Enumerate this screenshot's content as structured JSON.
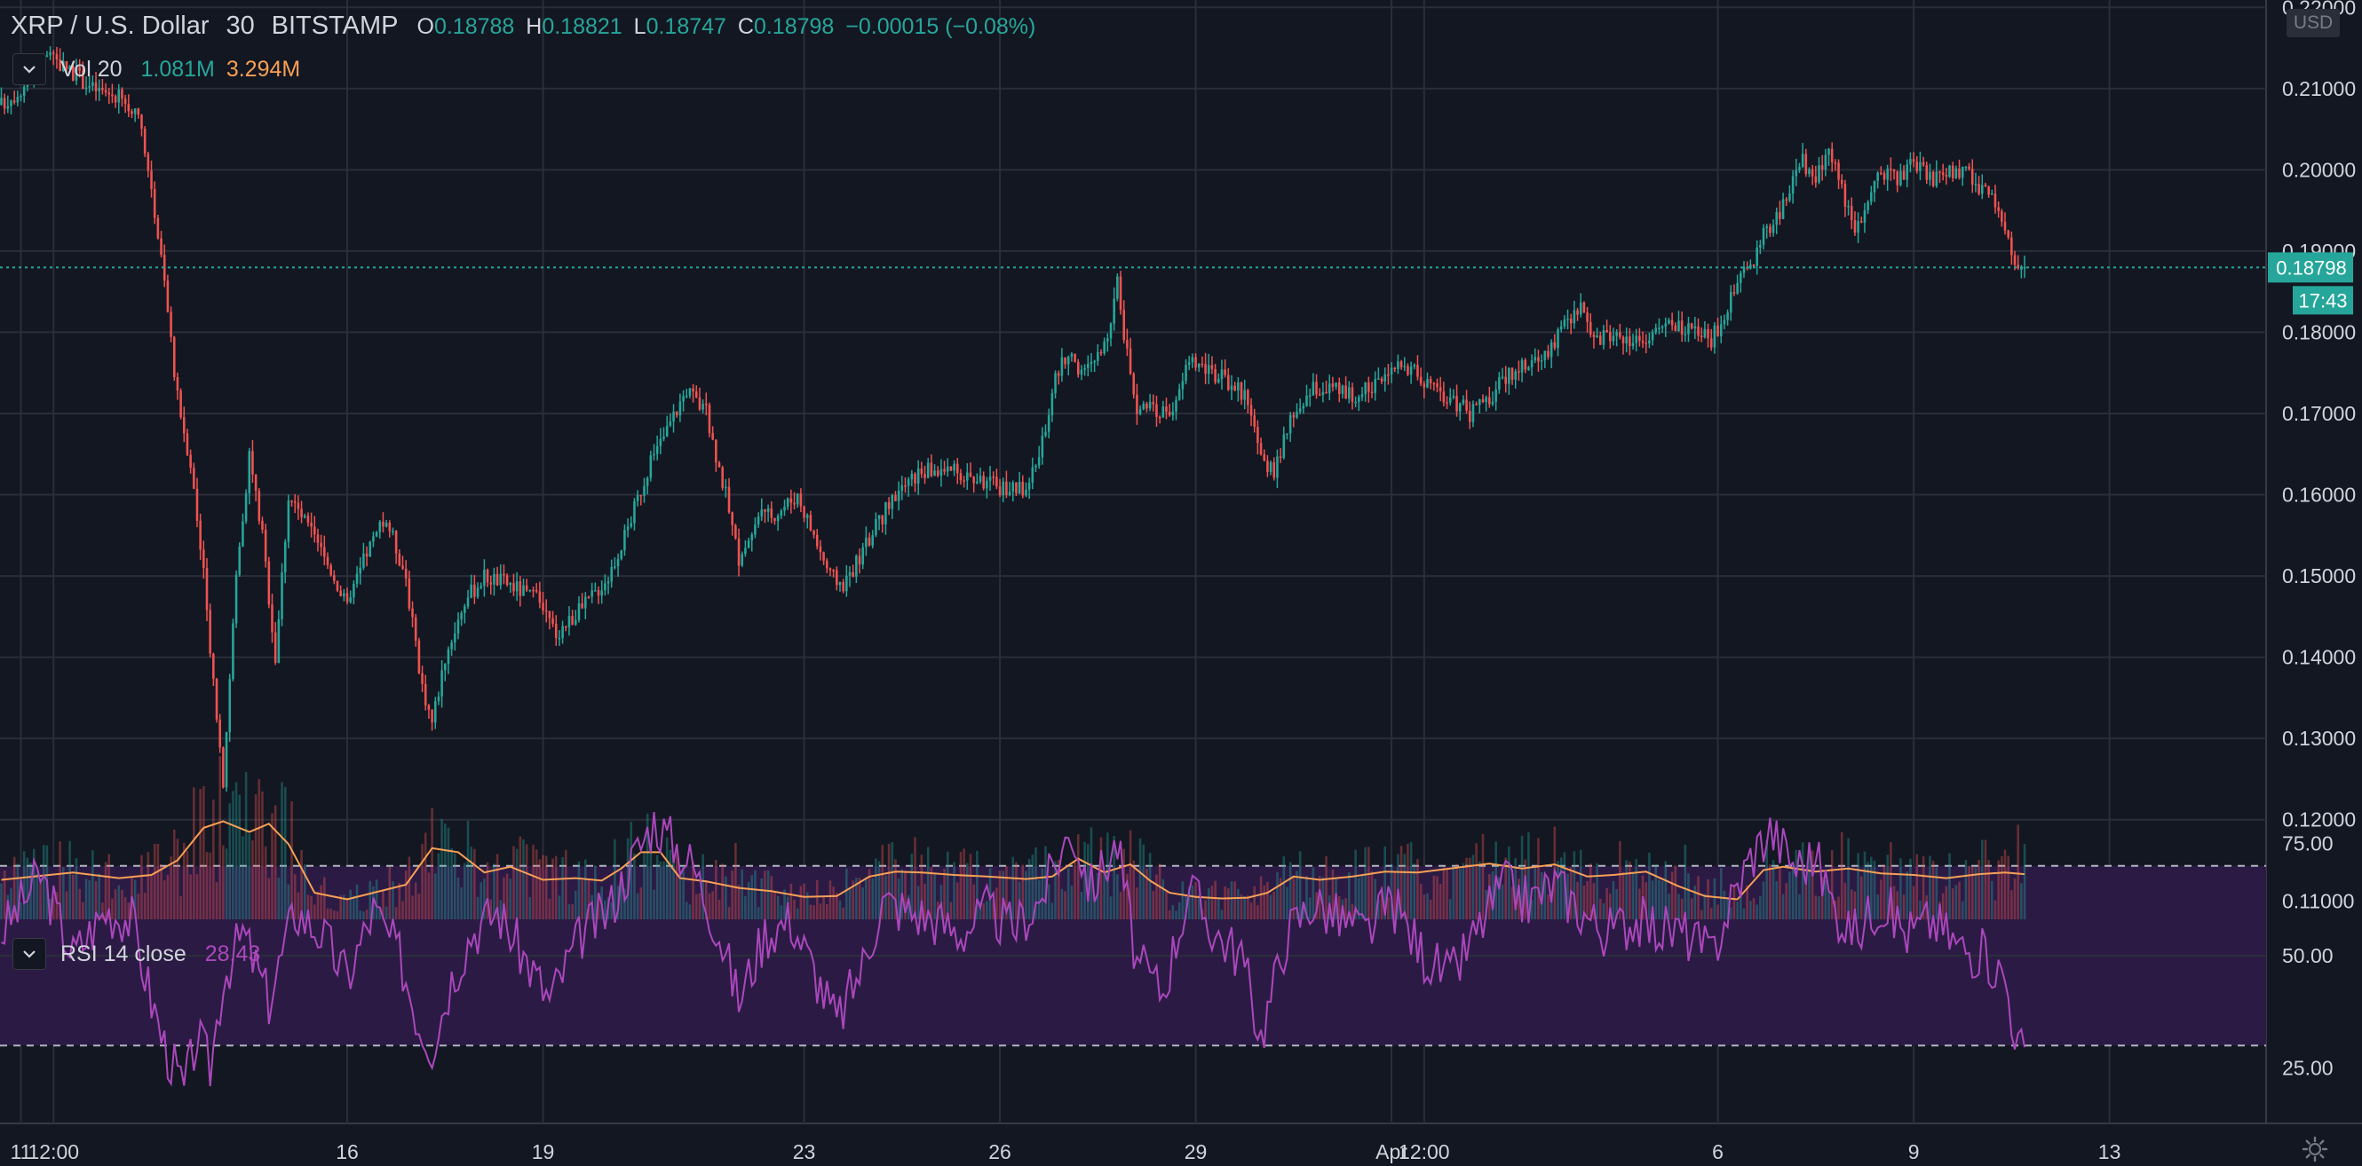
{
  "header": {
    "symbol": "XRP / U.S. Dollar",
    "interval": "30",
    "exchange": "BITSTAMP",
    "o_label": "O",
    "o_value": "0.18788",
    "h_label": "H",
    "h_value": "0.18821",
    "l_label": "L",
    "l_value": "0.18747",
    "c_label": "C",
    "c_value": "0.18798",
    "change": "−0.00015 (−0.08%)"
  },
  "volume_legend": {
    "label": "Vol 20",
    "value1": "1.081M",
    "value2": "3.294M"
  },
  "rsi_legend": {
    "label": "RSI 14 close",
    "value": "28.43"
  },
  "currency_badge": "USD",
  "price_badge": {
    "price": "0.18798",
    "countdown": "17:43"
  },
  "colors": {
    "background": "#131722",
    "grid": "#2a2e39",
    "up": "#26a69a",
    "down": "#ef5350",
    "volume_ma": "#f7a055",
    "rsi_line": "#ab47bc",
    "rsi_band": "#2b1b44",
    "axis_text": "#d1d4dc"
  },
  "icons": {
    "collapse": "chevron-down-icon",
    "settings": "gear-icon"
  },
  "chart_data": [
    {
      "type": "candlestick",
      "price_axis": {
        "ticks": [
          "0.11000",
          "0.12000",
          "0.13000",
          "0.14000",
          "0.15000",
          "0.16000",
          "0.17000",
          "0.18000",
          "0.19000",
          "0.20000",
          "0.21000",
          "0.22000"
        ],
        "ylim": [
          0.1073,
          0.2209
        ]
      },
      "x_axis": {
        "labels": [
          "11",
          "12:00",
          "16",
          "19",
          "23",
          "26",
          "29",
          "Apr",
          "12:00",
          "6",
          "9",
          "13"
        ],
        "label_days": [
          0.0,
          0.5,
          5.0,
          8.0,
          12.0,
          15.0,
          18.0,
          21.0,
          21.5,
          26.0,
          29.0,
          32.0
        ],
        "xlim": [
          -0.32,
          34.4
        ]
      },
      "current_price": 0.18798,
      "series_points": [
        [
          -0.3,
          0.208
        ],
        [
          0.0,
          0.21
        ],
        [
          0.4,
          0.214
        ],
        [
          0.8,
          0.212
        ],
        [
          1.1,
          0.21
        ],
        [
          1.5,
          0.209
        ],
        [
          1.8,
          0.206
        ],
        [
          2.0,
          0.198
        ],
        [
          2.2,
          0.186
        ],
        [
          2.4,
          0.172
        ],
        [
          2.6,
          0.164
        ],
        [
          2.8,
          0.15
        ],
        [
          3.0,
          0.133
        ],
        [
          3.1,
          0.125
        ],
        [
          3.3,
          0.15
        ],
        [
          3.5,
          0.165
        ],
        [
          3.7,
          0.155
        ],
        [
          3.9,
          0.14
        ],
        [
          4.1,
          0.16
        ],
        [
          4.4,
          0.156
        ],
        [
          4.8,
          0.15
        ],
        [
          5.0,
          0.146
        ],
        [
          5.3,
          0.153
        ],
        [
          5.6,
          0.157
        ],
        [
          5.9,
          0.15
        ],
        [
          6.1,
          0.138
        ],
        [
          6.3,
          0.132
        ],
        [
          6.5,
          0.14
        ],
        [
          6.8,
          0.147
        ],
        [
          7.1,
          0.15
        ],
        [
          7.5,
          0.149
        ],
        [
          7.9,
          0.147
        ],
        [
          8.2,
          0.143
        ],
        [
          8.6,
          0.146
        ],
        [
          9.0,
          0.15
        ],
        [
          9.3,
          0.156
        ],
        [
          9.6,
          0.163
        ],
        [
          9.9,
          0.168
        ],
        [
          10.2,
          0.173
        ],
        [
          10.5,
          0.17
        ],
        [
          10.8,
          0.16
        ],
        [
          11.0,
          0.152
        ],
        [
          11.3,
          0.157
        ],
        [
          11.6,
          0.158
        ],
        [
          11.9,
          0.16
        ],
        [
          12.2,
          0.154
        ],
        [
          12.4,
          0.15
        ],
        [
          12.6,
          0.149
        ],
        [
          12.9,
          0.153
        ],
        [
          13.1,
          0.156
        ],
        [
          13.4,
          0.16
        ],
        [
          13.8,
          0.163
        ],
        [
          14.2,
          0.163
        ],
        [
          14.6,
          0.162
        ],
        [
          15.0,
          0.161
        ],
        [
          15.4,
          0.161
        ],
        [
          15.6,
          0.164
        ],
        [
          15.8,
          0.173
        ],
        [
          16.0,
          0.177
        ],
        [
          16.3,
          0.175
        ],
        [
          16.6,
          0.178
        ],
        [
          16.8,
          0.186
        ],
        [
          16.9,
          0.18
        ],
        [
          17.1,
          0.171
        ],
        [
          17.4,
          0.17
        ],
        [
          17.7,
          0.171
        ],
        [
          17.9,
          0.177
        ],
        [
          18.2,
          0.175
        ],
        [
          18.5,
          0.174
        ],
        [
          18.8,
          0.172
        ],
        [
          19.0,
          0.164
        ],
        [
          19.2,
          0.163
        ],
        [
          19.5,
          0.17
        ],
        [
          19.8,
          0.173
        ],
        [
          20.1,
          0.173
        ],
        [
          20.5,
          0.172
        ],
        [
          20.9,
          0.175
        ],
        [
          21.3,
          0.176
        ],
        [
          21.6,
          0.173
        ],
        [
          21.9,
          0.172
        ],
        [
          22.2,
          0.17
        ],
        [
          22.5,
          0.172
        ],
        [
          22.8,
          0.175
        ],
        [
          23.1,
          0.176
        ],
        [
          23.4,
          0.178
        ],
        [
          23.7,
          0.181
        ],
        [
          23.9,
          0.183
        ],
        [
          24.1,
          0.179
        ],
        [
          24.4,
          0.18
        ],
        [
          24.7,
          0.179
        ],
        [
          25.0,
          0.18
        ],
        [
          25.3,
          0.181
        ],
        [
          25.6,
          0.18
        ],
        [
          25.9,
          0.179
        ],
        [
          26.1,
          0.182
        ],
        [
          26.3,
          0.186
        ],
        [
          26.5,
          0.188
        ],
        [
          26.7,
          0.192
        ],
        [
          26.9,
          0.194
        ],
        [
          27.1,
          0.198
        ],
        [
          27.3,
          0.201
        ],
        [
          27.5,
          0.199
        ],
        [
          27.7,
          0.203
        ],
        [
          27.9,
          0.198
        ],
        [
          28.1,
          0.192
        ],
        [
          28.3,
          0.196
        ],
        [
          28.5,
          0.2
        ],
        [
          28.8,
          0.199
        ],
        [
          29.0,
          0.201
        ],
        [
          29.3,
          0.199
        ],
        [
          29.6,
          0.2
        ],
        [
          29.9,
          0.199
        ],
        [
          30.2,
          0.196
        ],
        [
          30.4,
          0.192
        ],
        [
          30.6,
          0.188
        ],
        [
          30.7,
          0.18798
        ]
      ]
    },
    {
      "type": "bar",
      "name": "Vol 20",
      "moving_average_points": [
        [
          -0.3,
          0.1126
        ],
        [
          0.8,
          0.1135
        ],
        [
          1.5,
          0.1128
        ],
        [
          2.0,
          0.1132
        ],
        [
          2.4,
          0.115
        ],
        [
          2.8,
          0.119
        ],
        [
          3.1,
          0.1198
        ],
        [
          3.5,
          0.1185
        ],
        [
          3.8,
          0.1195
        ],
        [
          4.1,
          0.117
        ],
        [
          4.5,
          0.111
        ],
        [
          5.0,
          0.1102
        ],
        [
          5.4,
          0.111
        ],
        [
          5.9,
          0.112
        ],
        [
          6.3,
          0.1165
        ],
        [
          6.7,
          0.116
        ],
        [
          7.1,
          0.1135
        ],
        [
          7.5,
          0.1142
        ],
        [
          8.0,
          0.1126
        ],
        [
          8.5,
          0.1128
        ],
        [
          8.9,
          0.1125
        ],
        [
          9.2,
          0.114
        ],
        [
          9.5,
          0.116
        ],
        [
          9.8,
          0.116
        ],
        [
          10.1,
          0.1128
        ],
        [
          10.5,
          0.1124
        ],
        [
          11.0,
          0.1116
        ],
        [
          11.5,
          0.1112
        ],
        [
          12.0,
          0.1105
        ],
        [
          12.5,
          0.1106
        ],
        [
          13.0,
          0.113
        ],
        [
          13.4,
          0.1136
        ],
        [
          13.8,
          0.1135
        ],
        [
          14.3,
          0.1132
        ],
        [
          14.8,
          0.113
        ],
        [
          15.4,
          0.1127
        ],
        [
          15.8,
          0.113
        ],
        [
          16.2,
          0.1152
        ],
        [
          16.6,
          0.1135
        ],
        [
          17.0,
          0.1145
        ],
        [
          17.3,
          0.1125
        ],
        [
          17.6,
          0.111
        ],
        [
          18.0,
          0.1105
        ],
        [
          18.4,
          0.1103
        ],
        [
          18.8,
          0.1104
        ],
        [
          19.1,
          0.111
        ],
        [
          19.5,
          0.113
        ],
        [
          19.9,
          0.1126
        ],
        [
          20.4,
          0.113
        ],
        [
          20.9,
          0.1136
        ],
        [
          21.4,
          0.1135
        ],
        [
          21.9,
          0.114
        ],
        [
          22.5,
          0.1146
        ],
        [
          23.0,
          0.114
        ],
        [
          23.5,
          0.1145
        ],
        [
          24.0,
          0.113
        ],
        [
          24.4,
          0.1132
        ],
        [
          24.9,
          0.1136
        ],
        [
          25.4,
          0.1118
        ],
        [
          25.8,
          0.1106
        ],
        [
          26.3,
          0.1102
        ],
        [
          26.7,
          0.1138
        ],
        [
          27.0,
          0.1142
        ],
        [
          27.5,
          0.1136
        ],
        [
          28.0,
          0.114
        ],
        [
          28.5,
          0.1134
        ],
        [
          29.0,
          0.1132
        ],
        [
          29.5,
          0.1128
        ],
        [
          30.0,
          0.1133
        ],
        [
          30.4,
          0.1135
        ],
        [
          30.7,
          0.1133
        ]
      ]
    },
    {
      "type": "line",
      "name": "RSI 14 close",
      "ylim": [
        0,
        100
      ],
      "band": [
        30,
        70
      ],
      "axis_ticks": [
        "25.00",
        "50.00",
        "75.00"
      ],
      "points": [
        [
          -0.3,
          55
        ],
        [
          0.3,
          68
        ],
        [
          0.8,
          50
        ],
        [
          1.3,
          60
        ],
        [
          1.7,
          58
        ],
        [
          2.0,
          40
        ],
        [
          2.2,
          30
        ],
        [
          2.5,
          20
        ],
        [
          2.7,
          32
        ],
        [
          2.9,
          25
        ],
        [
          3.1,
          45
        ],
        [
          3.4,
          55
        ],
        [
          3.8,
          40
        ],
        [
          4.2,
          60
        ],
        [
          4.6,
          55
        ],
        [
          5.0,
          45
        ],
        [
          5.4,
          60
        ],
        [
          5.8,
          50
        ],
        [
          6.1,
          35
        ],
        [
          6.3,
          30
        ],
        [
          6.6,
          45
        ],
        [
          6.9,
          55
        ],
        [
          7.3,
          60
        ],
        [
          7.7,
          50
        ],
        [
          8.1,
          40
        ],
        [
          8.6,
          55
        ],
        [
          9.0,
          60
        ],
        [
          9.4,
          72
        ],
        [
          9.7,
          80
        ],
        [
          10.0,
          75
        ],
        [
          10.3,
          70
        ],
        [
          10.7,
          55
        ],
        [
          11.0,
          40
        ],
        [
          11.4,
          55
        ],
        [
          11.8,
          58
        ],
        [
          12.2,
          45
        ],
        [
          12.5,
          35
        ],
        [
          12.9,
          48
        ],
        [
          13.2,
          62
        ],
        [
          13.6,
          60
        ],
        [
          14.0,
          58
        ],
        [
          14.4,
          55
        ],
        [
          14.8,
          60
        ],
        [
          15.2,
          56
        ],
        [
          15.6,
          62
        ],
        [
          15.9,
          72
        ],
        [
          16.1,
          78
        ],
        [
          16.4,
          65
        ],
        [
          16.8,
          75
        ],
        [
          17.1,
          48
        ],
        [
          17.5,
          42
        ],
        [
          17.9,
          65
        ],
        [
          18.3,
          55
        ],
        [
          18.7,
          50
        ],
        [
          19.0,
          32
        ],
        [
          19.4,
          55
        ],
        [
          19.8,
          62
        ],
        [
          20.2,
          58
        ],
        [
          20.6,
          55
        ],
        [
          21.0,
          62
        ],
        [
          21.5,
          50
        ],
        [
          21.9,
          45
        ],
        [
          22.3,
          55
        ],
        [
          22.7,
          66
        ],
        [
          23.1,
          62
        ],
        [
          23.5,
          66
        ],
        [
          23.9,
          60
        ],
        [
          24.3,
          55
        ],
        [
          24.7,
          58
        ],
        [
          25.1,
          56
        ],
        [
          25.5,
          55
        ],
        [
          25.9,
          50
        ],
        [
          26.2,
          62
        ],
        [
          26.5,
          72
        ],
        [
          26.8,
          78
        ],
        [
          27.2,
          70
        ],
        [
          27.5,
          72
        ],
        [
          27.8,
          60
        ],
        [
          28.1,
          55
        ],
        [
          28.5,
          62
        ],
        [
          28.9,
          55
        ],
        [
          29.3,
          58
        ],
        [
          29.7,
          52
        ],
        [
          30.1,
          50
        ],
        [
          30.4,
          45
        ],
        [
          30.6,
          30
        ],
        [
          30.7,
          28.43
        ]
      ]
    }
  ]
}
